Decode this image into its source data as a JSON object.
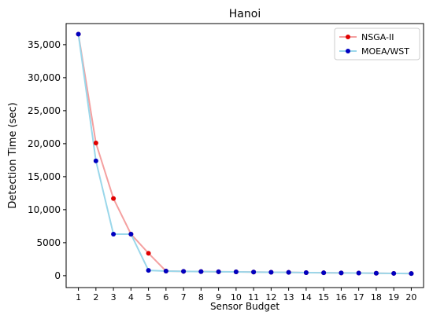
{
  "chart_data": {
    "type": "line",
    "title": "Hanoi",
    "xlabel": "Sensor Budget",
    "ylabel": "Detection Time (sec)",
    "x": [
      1,
      2,
      3,
      4,
      5,
      6,
      7,
      8,
      9,
      10,
      11,
      12,
      13,
      14,
      15,
      16,
      17,
      18,
      19,
      20
    ],
    "x_tick_labels": [
      "1",
      "2",
      "3",
      "4",
      "5",
      "6",
      "7",
      "8",
      "9",
      "10",
      "11",
      "12",
      "13",
      "14",
      "15",
      "16",
      "17",
      "18",
      "19",
      "20"
    ],
    "xlim": [
      0.3,
      20.7
    ],
    "ylim": [
      -1800,
      38200
    ],
    "y_ticks": [
      0,
      5000,
      10000,
      15000,
      20000,
      25000,
      30000,
      35000
    ],
    "y_tick_labels": [
      "0",
      "5000",
      "10,000",
      "15,000",
      "20,000",
      "25,000",
      "30,000",
      "35,000"
    ],
    "grid": false,
    "legend_position": "top-right",
    "series": [
      {
        "name": "NSGA-II",
        "line_color": "#f4a0a0",
        "marker_color": "#e00000",
        "values": [
          36600,
          20100,
          11700,
          6300,
          3400,
          700,
          650,
          620,
          600,
          580,
          550,
          520,
          500,
          460,
          440,
          420,
          400,
          370,
          350,
          330
        ]
      },
      {
        "name": "MOEA/WST",
        "line_color": "#9ad7ea",
        "marker_color": "#0000c0",
        "values": [
          36600,
          17400,
          6300,
          6300,
          800,
          700,
          650,
          620,
          600,
          580,
          550,
          520,
          500,
          460,
          440,
          420,
          400,
          370,
          350,
          330
        ]
      }
    ]
  }
}
